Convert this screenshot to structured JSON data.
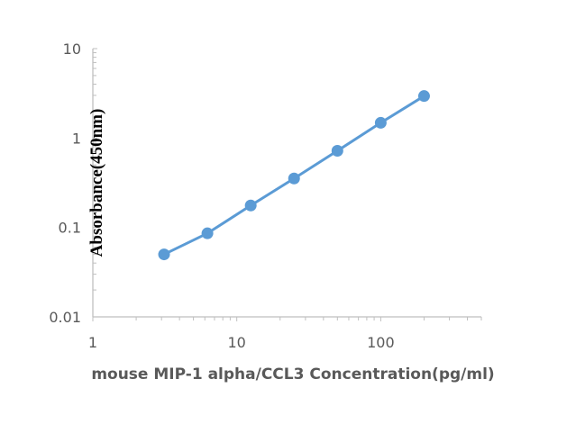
{
  "chart_data": {
    "type": "line",
    "title": "",
    "xlabel": "mouse MIP-1 alpha/CCL3 Concentration(pg/ml)",
    "ylabel": "Absorbance(450nm)",
    "xscale": "log",
    "yscale": "log",
    "xlim": [
      1,
      500
    ],
    "ylim": [
      0.01,
      10
    ],
    "xticks": [
      "1",
      "10",
      "100"
    ],
    "yticks": [
      "0.01",
      "0.1",
      "1",
      "10"
    ],
    "grid": false,
    "legend": "none",
    "color": "#5B9BD5",
    "series": [
      {
        "x": [
          3.125,
          6.25,
          12.5,
          25,
          50,
          100,
          200
        ],
        "y": [
          0.05,
          0.086,
          0.176,
          0.353,
          0.72,
          1.48,
          2.95
        ]
      }
    ]
  }
}
